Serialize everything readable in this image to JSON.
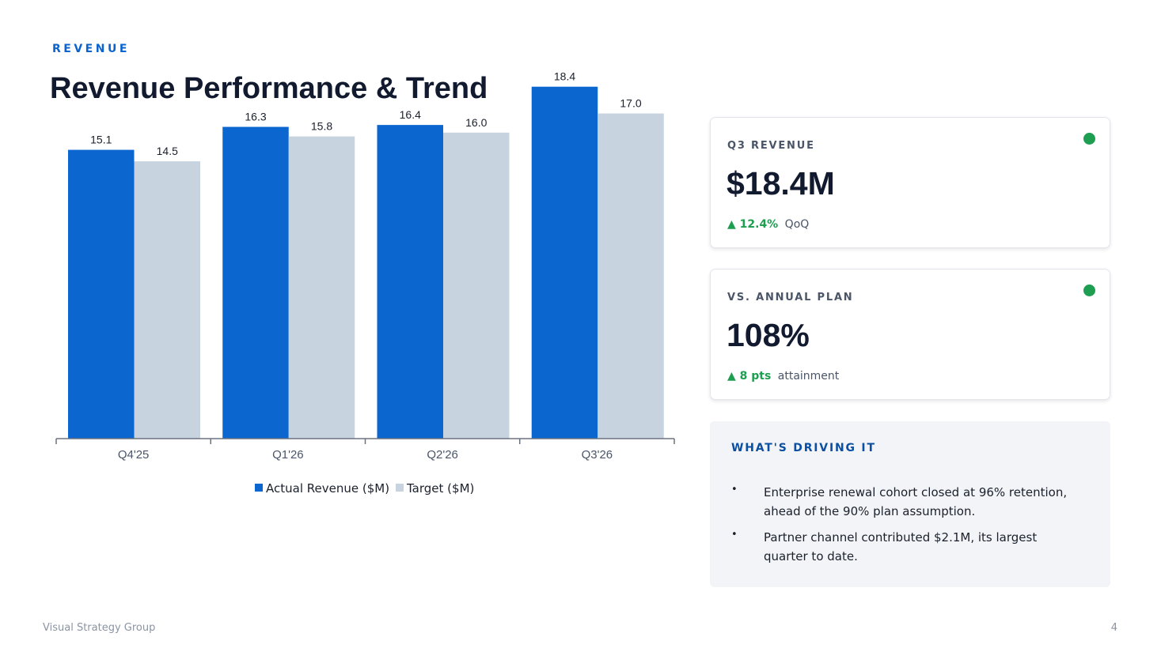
{
  "header": {
    "eyebrow": "REVENUE",
    "title": "Revenue Performance & Trend"
  },
  "colors": {
    "actual": "#0b66d0",
    "target": "#c8d3e0",
    "positive": "#1e9e50",
    "accent": "#0b63ce"
  },
  "chart_data": {
    "type": "bar",
    "categories": [
      "Q4'25",
      "Q1'26",
      "Q2'26",
      "Q3'26"
    ],
    "series": [
      {
        "name": "Actual Revenue ($M)",
        "values": [
          15.1,
          16.3,
          16.4,
          18.4
        ],
        "color": "#0b66d0"
      },
      {
        "name": "Target ($M)",
        "values": [
          14.5,
          15.8,
          16.0,
          17.0
        ],
        "color": "#c8d3e0"
      }
    ],
    "ylim": [
      0,
      20
    ],
    "grid": false,
    "legend_position": "bottom-center",
    "data_labels": true,
    "title": "",
    "xlabel": "",
    "ylabel": ""
  },
  "cards": [
    {
      "label": "Q3 REVENUE",
      "value": "$18.4M",
      "delta": "▲ 12.4%",
      "delta_note": "QoQ",
      "status": "green"
    },
    {
      "label": "VS. ANNUAL PLAN",
      "value": "108%",
      "delta": "▲ 8 pts",
      "delta_note": "attainment",
      "status": "green"
    }
  ],
  "drivers": {
    "title": "WHAT'S DRIVING IT",
    "items": [
      "Enterprise renewal cohort closed at 96% retention, ahead of the 90% plan assumption.",
      "Partner channel contributed $2.1M, its largest quarter to date."
    ]
  },
  "footer": {
    "brand": "Visual Strategy Group",
    "page_number": "4"
  }
}
